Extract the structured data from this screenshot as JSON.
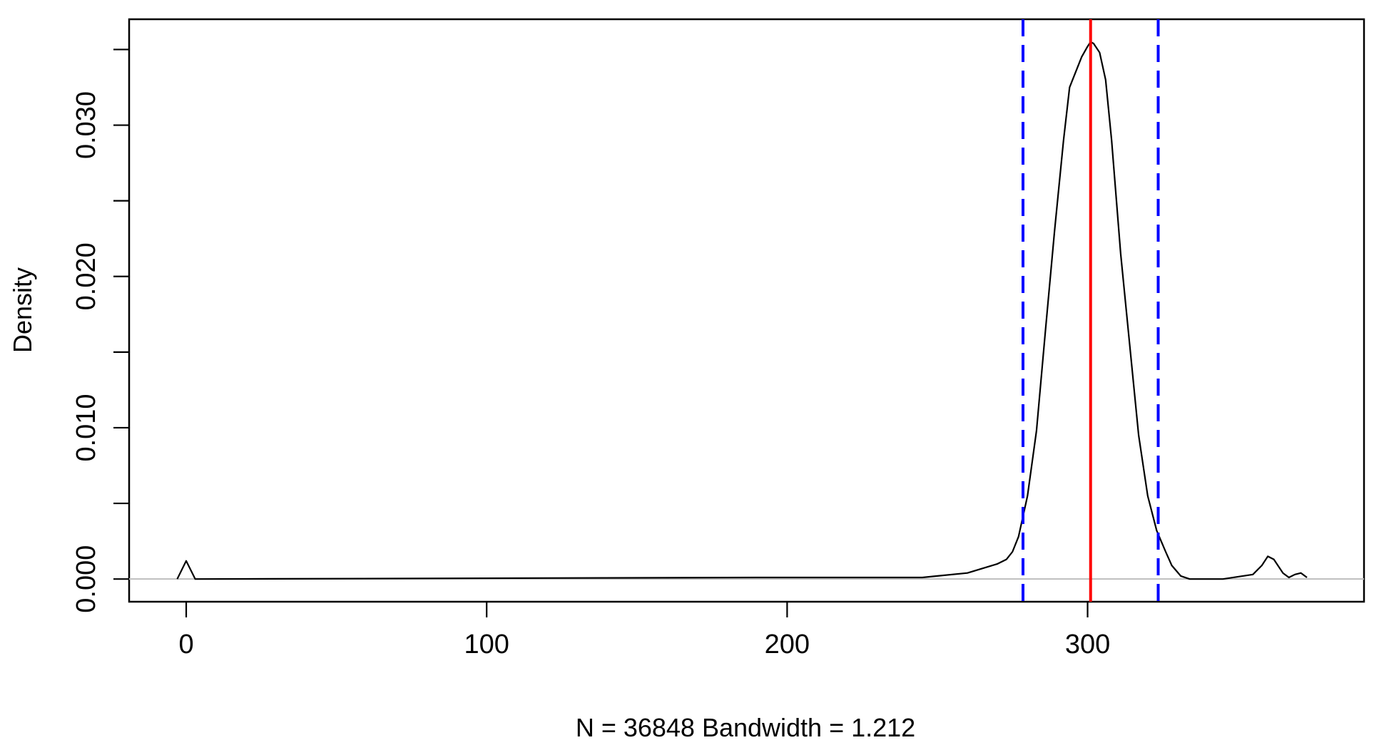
{
  "chart_data": {
    "type": "line",
    "title": "",
    "xlabel": "N = 36848   Bandwidth = 1.212",
    "ylabel": "Density",
    "xlim": [
      -19,
      392
    ],
    "ylim": [
      -0.0015,
      0.037
    ],
    "x_ticks": [
      0,
      100,
      200,
      300
    ],
    "x_tick_labels": [
      "0",
      "100",
      "200",
      "300"
    ],
    "y_ticks": [
      0.0,
      0.005,
      0.01,
      0.015,
      0.02,
      0.025,
      0.03,
      0.035
    ],
    "y_tick_labels": [
      "0.000",
      "",
      "0.010",
      "",
      "0.020",
      "",
      "0.030",
      ""
    ],
    "grid": false,
    "legend": "none",
    "baseline": 0,
    "series": [
      {
        "x": [
          -3,
          -1,
          0,
          1,
          3,
          190,
          191,
          245,
          250,
          260,
          265,
          270,
          273,
          275,
          277,
          280,
          283,
          286,
          289,
          292,
          294,
          296,
          298,
          300,
          301,
          302,
          304,
          306,
          308,
          311,
          314,
          317,
          320,
          323,
          326,
          328,
          331,
          334,
          345,
          355,
          358,
          360,
          362,
          365,
          367,
          369,
          371,
          373
        ],
        "y": [
          0,
          0.0008,
          0.0012,
          0.0008,
          0,
          0.0001,
          0.0001,
          0.0001,
          0.0002,
          0.0004,
          0.0007,
          0.001,
          0.0013,
          0.0018,
          0.0028,
          0.0055,
          0.0098,
          0.0165,
          0.023,
          0.029,
          0.0325,
          0.0335,
          0.0345,
          0.0352,
          0.0355,
          0.0354,
          0.0348,
          0.033,
          0.029,
          0.0215,
          0.0155,
          0.0095,
          0.0055,
          0.0032,
          0.0018,
          0.0009,
          0.0002,
          0,
          0,
          0.0003,
          0.0009,
          0.0015,
          0.0013,
          0.0004,
          0.0001,
          0.0003,
          0.0004,
          0.0001
        ]
      }
    ],
    "vlines": [
      {
        "x": 301,
        "style": "solid",
        "color": "#ff0000"
      },
      {
        "x": 278.5,
        "style": "dashed",
        "color": "#0000ff"
      },
      {
        "x": 323.5,
        "style": "dashed",
        "color": "#0000ff"
      }
    ],
    "colors": {
      "density_line": "#000000",
      "baseline": "#bebebe",
      "frame": "#000000"
    }
  }
}
